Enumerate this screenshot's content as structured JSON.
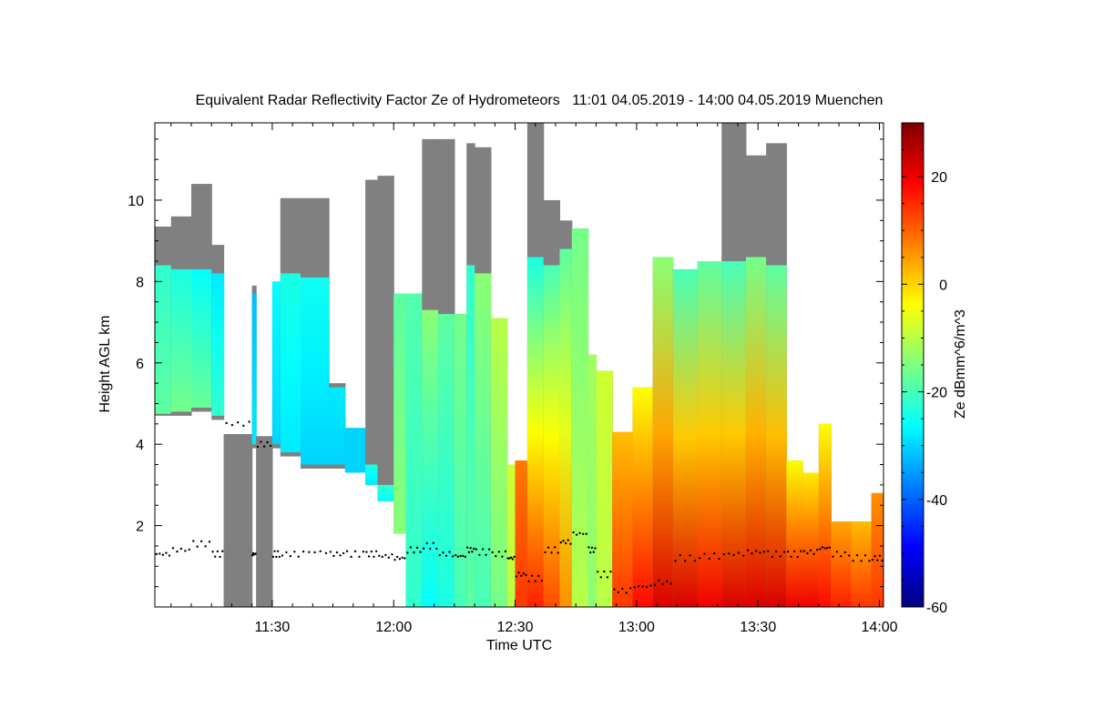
{
  "chart_data": {
    "type": "heatmap",
    "title": "Equivalent Radar Reflectivity Factor Ze of Hydrometeors   11:01 04.05.2019 - 14:00 04.05.2019 Muenchen",
    "xlabel": "Time UTC",
    "ylabel": "Height AGL km",
    "colorbar_label": "Ze dBmm^6/m^3",
    "x_range_minutes": [
      661,
      841
    ],
    "y_range_km": [
      0,
      11.9
    ],
    "x_ticks": [
      {
        "minute": 690,
        "label": "11:30"
      },
      {
        "minute": 720,
        "label": "12:00"
      },
      {
        "minute": 750,
        "label": "12:30"
      },
      {
        "minute": 780,
        "label": "13:00"
      },
      {
        "minute": 810,
        "label": "13:30"
      },
      {
        "minute": 840,
        "label": "14:00"
      }
    ],
    "y_ticks": [
      {
        "value": 2,
        "label": "2"
      },
      {
        "value": 4,
        "label": "4"
      },
      {
        "value": 6,
        "label": "6"
      },
      {
        "value": 8,
        "label": "8"
      },
      {
        "value": 10,
        "label": "10"
      }
    ],
    "colorbar_range_dbz": [
      -60,
      30
    ],
    "colorbar_ticks": [
      {
        "value": 20,
        "label": "20"
      },
      {
        "value": 0,
        "label": "0"
      },
      {
        "value": -20,
        "label": "-20"
      },
      {
        "value": -40,
        "label": "-40"
      },
      {
        "value": -60,
        "label": "-60"
      }
    ],
    "colors": {
      "no_echo": "#808080",
      "cloud_base_dots": "#000000",
      "colormap": [
        "#00007f",
        "#0000ff",
        "#007fff",
        "#00ffff",
        "#7fff7f",
        "#ffff00",
        "#ff7f00",
        "#ff0000",
        "#7f0000"
      ]
    },
    "profiles": [
      {
        "t": [
          661,
          665
        ],
        "top": 9.35,
        "gray_bottom": 4.7,
        "echo_top": 8.4,
        "echo_bottom": 4.75,
        "ze_top": -22,
        "ze_bottom": -18,
        "cb": 1.3
      },
      {
        "t": [
          665,
          670
        ],
        "top": 9.6,
        "gray_bottom": 4.7,
        "echo_top": 8.3,
        "echo_bottom": 4.8,
        "ze_top": -24,
        "ze_bottom": -16,
        "cb": 1.4
      },
      {
        "t": [
          670,
          675
        ],
        "top": 10.4,
        "gray_bottom": 4.8,
        "echo_top": 8.3,
        "echo_bottom": 4.9,
        "ze_top": -26,
        "ze_bottom": -17,
        "cb": 1.55
      },
      {
        "t": [
          675,
          678
        ],
        "top": 8.9,
        "gray_bottom": 4.6,
        "echo_top": 8.2,
        "echo_bottom": 4.7,
        "ze_top": -28,
        "ze_bottom": -22,
        "cb": 1.3
      },
      {
        "t": [
          678,
          685
        ],
        "top": 4.25,
        "gray_bottom": 0,
        "echo_top": 0,
        "echo_bottom": 0,
        "ze_top": -30,
        "ze_bottom": -30,
        "cb": 4.5
      },
      {
        "t": [
          685,
          686
        ],
        "top": 7.9,
        "gray_bottom": 3.9,
        "echo_top": 7.7,
        "echo_bottom": 4.0,
        "ze_top": -32,
        "ze_bottom": -28,
        "cb": 1.3
      },
      {
        "t": [
          686,
          690
        ],
        "top": 4.2,
        "gray_bottom": 0,
        "echo_top": 0,
        "echo_bottom": 0,
        "ze_top": -30,
        "ze_bottom": -30,
        "cb": 4.0
      },
      {
        "t": [
          690,
          692
        ],
        "top": 8.0,
        "gray_bottom": 3.9,
        "echo_top": 8.0,
        "echo_bottom": 4.0,
        "ze_top": -26,
        "ze_bottom": -30,
        "cb": 1.3
      },
      {
        "t": [
          692,
          697
        ],
        "top": 10.05,
        "gray_bottom": 3.7,
        "echo_top": 8.2,
        "echo_bottom": 3.8,
        "ze_top": -24,
        "ze_bottom": -28,
        "cb": 1.3
      },
      {
        "t": [
          697,
          704
        ],
        "top": 10.05,
        "gray_bottom": 3.4,
        "echo_top": 8.1,
        "echo_bottom": 3.5,
        "ze_top": -25,
        "ze_bottom": -30,
        "cb": 1.35
      },
      {
        "t": [
          704,
          708
        ],
        "top": 5.5,
        "gray_bottom": 3.4,
        "echo_top": 5.4,
        "echo_bottom": 3.5,
        "ze_top": -28,
        "ze_bottom": -30,
        "cb": 1.3
      },
      {
        "t": [
          708,
          713
        ],
        "top": 4.4,
        "gray_bottom": 3.3,
        "echo_top": 4.4,
        "echo_bottom": 3.3,
        "ze_top": -30,
        "ze_bottom": -30,
        "cb": 1.3
      },
      {
        "t": [
          713,
          716
        ],
        "top": 10.5,
        "gray_bottom": 3.0,
        "echo_top": 3.5,
        "echo_bottom": 3.0,
        "ze_top": -24,
        "ze_bottom": -28,
        "cb": 1.3
      },
      {
        "t": [
          716,
          720
        ],
        "top": 10.6,
        "gray_bottom": 2.6,
        "echo_top": 3.0,
        "echo_bottom": 2.6,
        "ze_top": -22,
        "ze_bottom": -26,
        "cb": 1.25
      },
      {
        "t": [
          720,
          723
        ],
        "top": 7.7,
        "gray_bottom": 1.8,
        "echo_top": 7.7,
        "echo_bottom": 1.8,
        "ze_top": -18,
        "ze_bottom": -14,
        "cb": 1.2
      },
      {
        "t": [
          723,
          727
        ],
        "top": 7.7,
        "gray_bottom": 0.0,
        "echo_top": 7.7,
        "echo_bottom": 0.0,
        "ze_top": -19,
        "ze_bottom": -22,
        "cb": 1.4
      },
      {
        "t": [
          727,
          731
        ],
        "top": 11.5,
        "gray_bottom": 0.0,
        "echo_top": 7.3,
        "echo_bottom": 0.0,
        "ze_top": -14,
        "ze_bottom": -26,
        "cb": 1.5
      },
      {
        "t": [
          731,
          735
        ],
        "top": 11.5,
        "gray_bottom": 0.0,
        "echo_top": 7.2,
        "echo_bottom": 0.0,
        "ze_top": -18,
        "ze_bottom": -24,
        "cb": 1.3
      },
      {
        "t": [
          735,
          738
        ],
        "top": 7.2,
        "gray_bottom": 0.0,
        "echo_top": 7.2,
        "echo_bottom": 0.0,
        "ze_top": -16,
        "ze_bottom": -20,
        "cb": 1.25
      },
      {
        "t": [
          738,
          740
        ],
        "top": 11.4,
        "gray_bottom": 0.0,
        "echo_top": 8.4,
        "echo_bottom": 0.0,
        "ze_top": -22,
        "ze_bottom": -18,
        "cb": 1.4
      },
      {
        "t": [
          740,
          744
        ],
        "top": 11.3,
        "gray_bottom": 0.0,
        "echo_top": 8.2,
        "echo_bottom": 0.0,
        "ze_top": -14,
        "ze_bottom": -20,
        "cb": 1.35
      },
      {
        "t": [
          744,
          748
        ],
        "top": 7.1,
        "gray_bottom": 0.0,
        "echo_top": 7.1,
        "echo_bottom": 0.0,
        "ze_top": -10,
        "ze_bottom": -16,
        "cb": 1.3
      },
      {
        "t": [
          748,
          750
        ],
        "top": 3.5,
        "gray_bottom": 0.0,
        "echo_top": 3.5,
        "echo_bottom": 0.0,
        "ze_top": -8,
        "ze_bottom": -10,
        "cb": 1.2
      },
      {
        "t": [
          750,
          753
        ],
        "top": 3.6,
        "gray_bottom": 0.0,
        "echo_top": 3.6,
        "echo_bottom": 0.0,
        "ze_top": 8,
        "ze_bottom": 14,
        "cb": 0.8
      },
      {
        "t": [
          753,
          757
        ],
        "top": 11.9,
        "gray_bottom": 0.0,
        "echo_top": 8.6,
        "echo_bottom": 0.0,
        "ze_top": -24,
        "ze_bottom": 16,
        "cb": 0.7
      },
      {
        "t": [
          757,
          761
        ],
        "top": 10.0,
        "gray_bottom": 0.0,
        "echo_top": 8.4,
        "echo_bottom": 0.0,
        "ze_top": -20,
        "ze_bottom": 12,
        "cb": 1.4
      },
      {
        "t": [
          761,
          764
        ],
        "top": 9.5,
        "gray_bottom": 0.0,
        "echo_top": 8.8,
        "echo_bottom": 0.0,
        "ze_top": -18,
        "ze_bottom": 6,
        "cb": 1.6
      },
      {
        "t": [
          764,
          768
        ],
        "top": 9.3,
        "gray_bottom": 0.0,
        "echo_top": 9.3,
        "echo_bottom": 0.0,
        "ze_top": -16,
        "ze_bottom": -10,
        "cb": 1.8
      },
      {
        "t": [
          768,
          770
        ],
        "top": 6.2,
        "gray_bottom": 0.0,
        "echo_top": 6.2,
        "echo_bottom": 0.0,
        "ze_top": -12,
        "ze_bottom": -14,
        "cb": 1.4
      },
      {
        "t": [
          770,
          774
        ],
        "top": 5.8,
        "gray_bottom": 0.0,
        "echo_top": 5.8,
        "echo_bottom": 0.0,
        "ze_top": -8,
        "ze_bottom": -10,
        "cb": 0.8
      },
      {
        "t": [
          774,
          779
        ],
        "top": 4.3,
        "gray_bottom": 0.0,
        "echo_top": 4.3,
        "echo_bottom": 0.0,
        "ze_top": 2,
        "ze_bottom": 14,
        "cb": 0.4
      },
      {
        "t": [
          779,
          784
        ],
        "top": 5.4,
        "gray_bottom": 0.0,
        "echo_top": 5.4,
        "echo_bottom": 0.0,
        "ze_top": -4,
        "ze_bottom": 18,
        "cb": 0.5
      },
      {
        "t": [
          784,
          789
        ],
        "top": 8.6,
        "gray_bottom": 0.0,
        "echo_top": 8.6,
        "echo_bottom": 0.0,
        "ze_top": -14,
        "ze_bottom": 22,
        "cb": 0.6
      },
      {
        "t": [
          789,
          795
        ],
        "top": 8.3,
        "gray_bottom": 0.0,
        "echo_top": 8.3,
        "echo_bottom": 0.0,
        "ze_top": -20,
        "ze_bottom": 22,
        "cb": 1.2
      },
      {
        "t": [
          795,
          801
        ],
        "top": 8.5,
        "gray_bottom": 0.0,
        "echo_top": 8.5,
        "echo_bottom": 0.0,
        "ze_top": -18,
        "ze_bottom": 20,
        "cb": 1.25
      },
      {
        "t": [
          801,
          807
        ],
        "top": 11.9,
        "gray_bottom": 0.0,
        "echo_top": 8.5,
        "echo_bottom": 0.0,
        "ze_top": -20,
        "ze_bottom": 22,
        "cb": 1.3
      },
      {
        "t": [
          807,
          812
        ],
        "top": 11.1,
        "gray_bottom": 0.0,
        "echo_top": 8.6,
        "echo_bottom": 0.0,
        "ze_top": -16,
        "ze_bottom": 22,
        "cb": 1.35
      },
      {
        "t": [
          812,
          817
        ],
        "top": 11.4,
        "gray_bottom": 0.0,
        "echo_top": 8.4,
        "echo_bottom": 0.0,
        "ze_top": -18,
        "ze_bottom": 22,
        "cb": 1.3
      },
      {
        "t": [
          817,
          821
        ],
        "top": 3.6,
        "gray_bottom": 0.0,
        "echo_top": 3.6,
        "echo_bottom": 0.0,
        "ze_top": -4,
        "ze_bottom": 20,
        "cb": 1.3
      },
      {
        "t": [
          821,
          825
        ],
        "top": 3.3,
        "gray_bottom": 0.0,
        "echo_top": 3.3,
        "echo_bottom": 0.0,
        "ze_top": -2,
        "ze_bottom": 20,
        "cb": 1.35
      },
      {
        "t": [
          825,
          828
        ],
        "top": 4.5,
        "gray_bottom": 0.0,
        "echo_top": 4.5,
        "echo_bottom": 0.0,
        "ze_top": -4,
        "ze_bottom": 18,
        "cb": 1.45
      },
      {
        "t": [
          828,
          833
        ],
        "top": 2.1,
        "gray_bottom": 0.0,
        "echo_top": 2.1,
        "echo_bottom": 0.0,
        "ze_top": 4,
        "ze_bottom": 16,
        "cb": 1.3
      },
      {
        "t": [
          833,
          838
        ],
        "top": 2.1,
        "gray_bottom": 0.0,
        "echo_top": 2.1,
        "echo_bottom": 0.0,
        "ze_top": 2,
        "ze_bottom": 14,
        "cb": 1.2
      },
      {
        "t": [
          838,
          841
        ],
        "top": 2.8,
        "gray_bottom": 0.0,
        "echo_top": 2.8,
        "echo_bottom": 0.0,
        "ze_top": 6,
        "ze_bottom": 14,
        "cb": 1.2
      }
    ]
  }
}
